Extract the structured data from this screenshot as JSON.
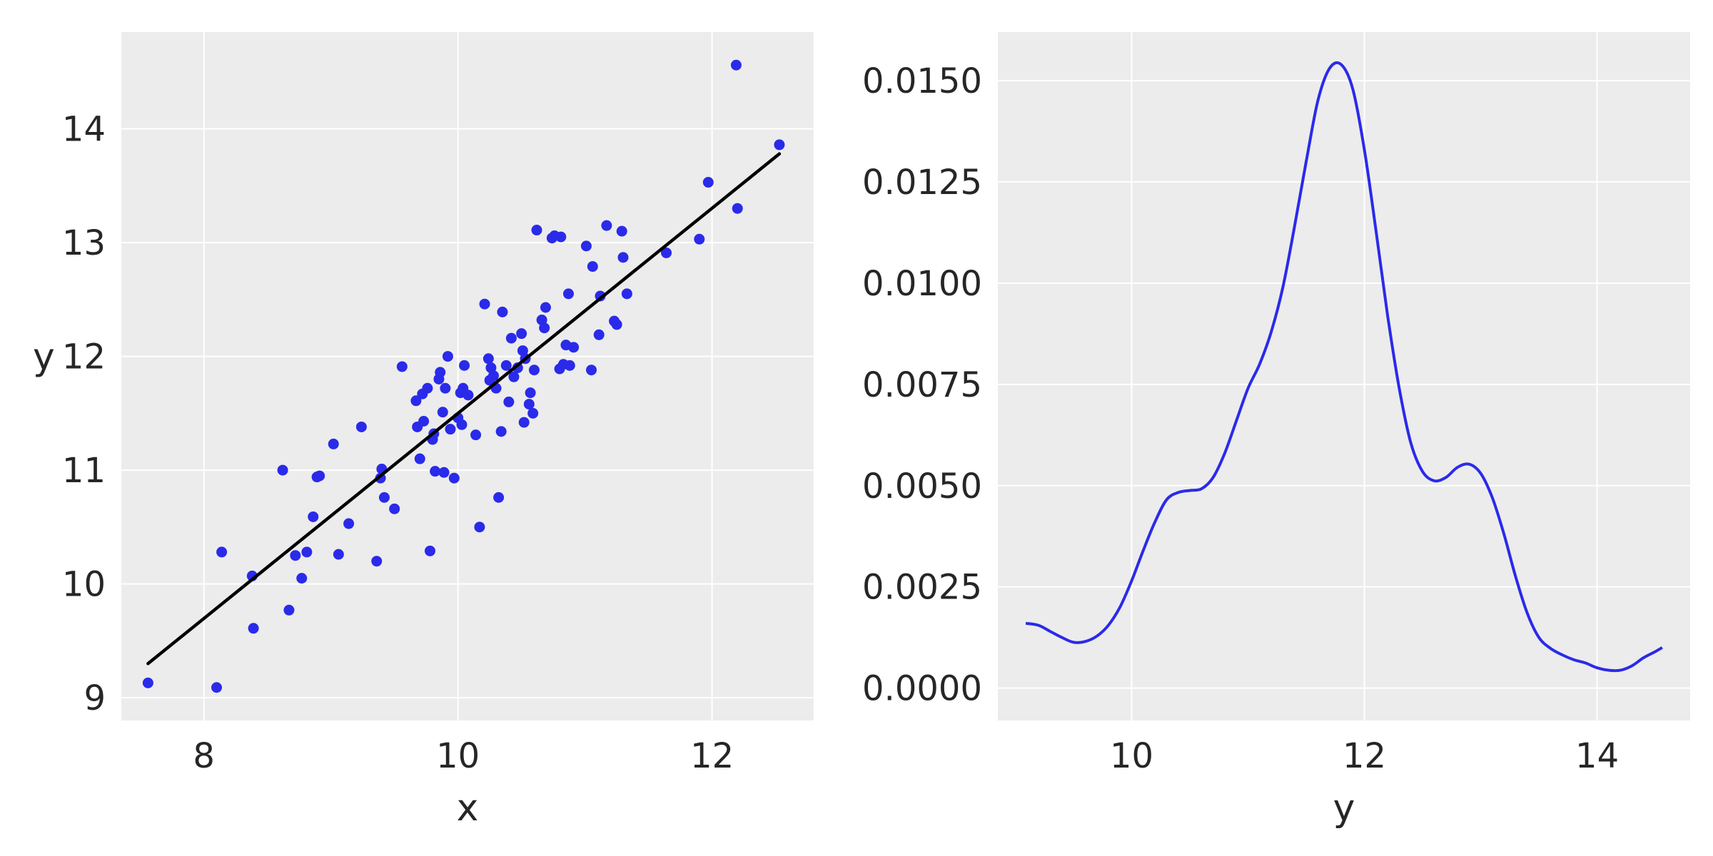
{
  "colors": {
    "background": "#ffffff",
    "panel": "#ececec",
    "grid": "#ffffff",
    "points": "#2a2aea",
    "fit_line": "#000000",
    "density_line": "#2a2aea",
    "text": "#262626"
  },
  "chart_data": [
    {
      "type": "scatter",
      "title": "",
      "xlabel": "x",
      "ylabel": "y",
      "xlim": [
        7.35,
        12.8
      ],
      "ylim": [
        8.8,
        14.85
      ],
      "xticks": [
        8,
        10,
        12
      ],
      "yticks": [
        9,
        10,
        11,
        12,
        13,
        14
      ],
      "xtick_labels": [
        "8",
        "10",
        "12"
      ],
      "ytick_labels": [
        "9",
        "10",
        "11",
        "12",
        "13",
        "14"
      ],
      "grid": true,
      "points": [
        [
          7.56,
          9.13
        ],
        [
          8.1,
          9.09
        ],
        [
          8.14,
          10.28
        ],
        [
          8.38,
          10.07
        ],
        [
          8.39,
          9.61
        ],
        [
          8.62,
          11.0
        ],
        [
          8.67,
          9.77
        ],
        [
          8.72,
          10.25
        ],
        [
          8.77,
          10.05
        ],
        [
          8.81,
          10.28
        ],
        [
          8.86,
          10.59
        ],
        [
          8.89,
          10.94
        ],
        [
          8.91,
          10.95
        ],
        [
          9.02,
          11.23
        ],
        [
          9.06,
          10.26
        ],
        [
          9.14,
          10.53
        ],
        [
          9.24,
          11.38
        ],
        [
          9.36,
          10.2
        ],
        [
          9.39,
          10.93
        ],
        [
          9.4,
          11.01
        ],
        [
          9.42,
          10.76
        ],
        [
          9.5,
          10.66
        ],
        [
          9.56,
          11.91
        ],
        [
          9.67,
          11.61
        ],
        [
          9.68,
          11.38
        ],
        [
          9.7,
          11.1
        ],
        [
          9.72,
          11.67
        ],
        [
          9.73,
          11.43
        ],
        [
          9.76,
          11.72
        ],
        [
          9.78,
          10.29
        ],
        [
          9.8,
          11.27
        ],
        [
          9.81,
          11.32
        ],
        [
          9.82,
          10.99
        ],
        [
          9.85,
          11.8
        ],
        [
          9.86,
          11.86
        ],
        [
          9.88,
          11.51
        ],
        [
          9.89,
          10.98
        ],
        [
          9.9,
          11.72
        ],
        [
          9.92,
          12.0
        ],
        [
          9.94,
          11.36
        ],
        [
          9.97,
          10.93
        ],
        [
          10.0,
          11.46
        ],
        [
          10.02,
          11.68
        ],
        [
          10.03,
          11.4
        ],
        [
          10.04,
          11.72
        ],
        [
          10.05,
          11.92
        ],
        [
          10.08,
          11.66
        ],
        [
          10.14,
          11.31
        ],
        [
          10.17,
          10.5
        ],
        [
          10.21,
          12.46
        ],
        [
          10.24,
          11.98
        ],
        [
          10.25,
          11.79
        ],
        [
          10.26,
          11.9
        ],
        [
          10.28,
          11.83
        ],
        [
          10.3,
          11.72
        ],
        [
          10.32,
          10.76
        ],
        [
          10.34,
          11.34
        ],
        [
          10.35,
          12.39
        ],
        [
          10.38,
          11.92
        ],
        [
          10.4,
          11.6
        ],
        [
          10.42,
          12.16
        ],
        [
          10.44,
          11.82
        ],
        [
          10.47,
          11.9
        ],
        [
          10.5,
          12.2
        ],
        [
          10.51,
          12.05
        ],
        [
          10.52,
          11.42
        ],
        [
          10.53,
          11.98
        ],
        [
          10.56,
          11.58
        ],
        [
          10.57,
          11.68
        ],
        [
          10.59,
          11.5
        ],
        [
          10.6,
          11.88
        ],
        [
          10.62,
          13.11
        ],
        [
          10.66,
          12.32
        ],
        [
          10.68,
          12.25
        ],
        [
          10.69,
          12.43
        ],
        [
          10.74,
          13.04
        ],
        [
          10.76,
          13.06
        ],
        [
          10.8,
          11.89
        ],
        [
          10.81,
          13.05
        ],
        [
          10.83,
          11.93
        ],
        [
          10.85,
          12.1
        ],
        [
          10.87,
          12.55
        ],
        [
          10.88,
          11.92
        ],
        [
          10.91,
          12.08
        ],
        [
          11.01,
          12.97
        ],
        [
          11.05,
          11.88
        ],
        [
          11.06,
          12.79
        ],
        [
          11.11,
          12.19
        ],
        [
          11.12,
          12.53
        ],
        [
          11.17,
          13.15
        ],
        [
          11.23,
          12.31
        ],
        [
          11.25,
          12.28
        ],
        [
          11.29,
          13.1
        ],
        [
          11.3,
          12.87
        ],
        [
          11.33,
          12.55
        ],
        [
          11.64,
          12.91
        ],
        [
          11.9,
          13.03
        ],
        [
          11.97,
          13.53
        ],
        [
          12.19,
          14.56
        ],
        [
          12.2,
          13.3
        ],
        [
          12.53,
          13.86
        ]
      ],
      "fit_line": {
        "x": [
          7.56,
          12.53
        ],
        "y": [
          9.3,
          13.78
        ]
      }
    },
    {
      "type": "line",
      "title": "",
      "xlabel": "y",
      "ylabel": "",
      "xlim": [
        8.85,
        14.8
      ],
      "ylim": [
        -0.0008,
        0.0162
      ],
      "xticks": [
        10,
        12,
        14
      ],
      "yticks": [
        0.0,
        0.0025,
        0.005,
        0.0075,
        0.01,
        0.0125,
        0.015
      ],
      "xtick_labels": [
        "10",
        "12",
        "14"
      ],
      "ytick_labels": [
        "0.0000",
        "0.0025",
        "0.0050",
        "0.0075",
        "0.0100",
        "0.0125",
        "0.0150"
      ],
      "grid": true,
      "x": [
        9.09,
        9.2,
        9.3,
        9.4,
        9.5,
        9.6,
        9.7,
        9.8,
        9.9,
        10.0,
        10.1,
        10.2,
        10.3,
        10.4,
        10.5,
        10.6,
        10.7,
        10.8,
        10.9,
        11.0,
        11.1,
        11.2,
        11.3,
        11.4,
        11.5,
        11.6,
        11.7,
        11.8,
        11.9,
        12.0,
        12.1,
        12.2,
        12.3,
        12.4,
        12.5,
        12.6,
        12.7,
        12.8,
        12.9,
        13.0,
        13.1,
        13.2,
        13.3,
        13.4,
        13.5,
        13.6,
        13.7,
        13.8,
        13.9,
        14.0,
        14.1,
        14.2,
        14.3,
        14.4,
        14.5,
        14.56
      ],
      "y": [
        0.0016,
        0.00155,
        0.0014,
        0.00125,
        0.00113,
        0.00115,
        0.00128,
        0.00155,
        0.002,
        0.00265,
        0.0034,
        0.0041,
        0.00465,
        0.00483,
        0.00488,
        0.00492,
        0.0052,
        0.0058,
        0.0066,
        0.0074,
        0.008,
        0.0088,
        0.0099,
        0.0114,
        0.013,
        0.0145,
        0.0153,
        0.0154,
        0.0148,
        0.0133,
        0.0113,
        0.0092,
        0.0074,
        0.00605,
        0.00535,
        0.00512,
        0.0052,
        0.00545,
        0.00553,
        0.0053,
        0.0047,
        0.0038,
        0.00275,
        0.00185,
        0.00125,
        0.00098,
        0.00082,
        0.0007,
        0.00062,
        0.0005,
        0.00044,
        0.00044,
        0.00055,
        0.00075,
        0.0009,
        0.001
      ]
    }
  ]
}
